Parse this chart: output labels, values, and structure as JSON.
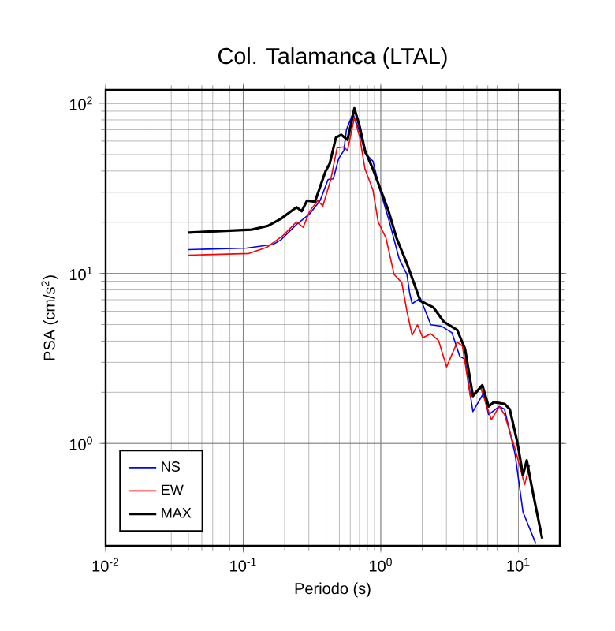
{
  "chart_data": {
    "type": "line",
    "title": "Col. Talamanca (LTAL)",
    "xlabel": "Periodo (s)",
    "ylabel": "PSA (cm/s$^{2}$)",
    "log": "xy",
    "grid": true,
    "legend": "bottom left",
    "marker": "none",
    "line_style": "solid",
    "xlim": [
      0.01,
      20
    ],
    "ylim": [
      0.25,
      120
    ],
    "xticks": [
      {
        "value": 0.01,
        "label": "10$^{-2}$"
      },
      {
        "value": 0.1,
        "label": "10$^{-1}$"
      },
      {
        "value": 1,
        "label": "10$^{0}$"
      },
      {
        "value": 10,
        "label": "10$^{1}$"
      }
    ],
    "yticks": [
      {
        "value": 1,
        "label": "10$^{0}$"
      },
      {
        "value": 10,
        "label": "10$^{1}$"
      },
      {
        "value": 100,
        "label": "10$^{2}$"
      }
    ],
    "series": [
      {
        "name": "NS",
        "color": "#0000ff",
        "x": [
          0.04,
          0.106,
          0.164,
          0.187,
          0.244,
          0.304,
          0.362,
          0.414,
          0.452,
          0.494,
          0.539,
          0.563,
          0.627,
          0.703,
          0.768,
          0.877,
          1.0,
          1.14,
          1.36,
          1.55,
          1.62,
          1.69,
          1.94,
          2.31,
          2.75,
          3.29,
          3.75,
          4.09,
          4.67,
          5.57,
          6.08,
          7.26,
          7.93,
          9.46,
          10.8,
          13.4
        ],
        "values": [
          13.8,
          14.1,
          14.8,
          15.7,
          19.4,
          22.4,
          26.8,
          35.7,
          36,
          47.4,
          52.8,
          70.2,
          87,
          67.8,
          50.9,
          45.7,
          29.8,
          20.9,
          12.2,
          9.85,
          7.67,
          6.64,
          7.14,
          4.99,
          4.9,
          4.48,
          3.25,
          3.13,
          1.54,
          1.97,
          1.48,
          1.65,
          1.59,
          0.867,
          0.395,
          0.257
        ]
      },
      {
        "name": "EW",
        "color": "#ff0000",
        "x": [
          0.04,
          0.11,
          0.15,
          0.196,
          0.244,
          0.273,
          0.304,
          0.348,
          0.379,
          0.433,
          0.481,
          0.539,
          0.573,
          0.643,
          0.703,
          0.768,
          0.877,
          0.957,
          1.09,
          1.25,
          1.42,
          1.55,
          1.69,
          1.85,
          2.02,
          2.31,
          2.63,
          3.01,
          3.59,
          3.92,
          4.47,
          5.33,
          6.36,
          7.26,
          7.93,
          9.46,
          11.1,
          12.1
        ],
        "values": [
          12.8,
          13.1,
          14.3,
          16.8,
          20.1,
          18.7,
          23.2,
          26.8,
          24.9,
          35.7,
          54.7,
          55.5,
          52.8,
          82.8,
          63,
          41.1,
          30.9,
          20.1,
          16.2,
          9.85,
          8.85,
          5.97,
          4.33,
          4.99,
          4.18,
          4.42,
          4.03,
          2.82,
          3.94,
          3.75,
          1.9,
          2.12,
          1.38,
          1.65,
          1.48,
          0.93,
          0.573,
          0.752
        ]
      },
      {
        "name": "MAX",
        "color": "#000000",
        "x": [
          0.04,
          0.115,
          0.15,
          0.187,
          0.244,
          0.266,
          0.291,
          0.332,
          0.396,
          0.425,
          0.472,
          0.515,
          0.573,
          0.643,
          0.703,
          0.768,
          0.877,
          1.0,
          1.14,
          1.3,
          1.55,
          1.94,
          2.41,
          2.88,
          3.59,
          4.09,
          4.67,
          5.47,
          6.08,
          6.64,
          7.93,
          8.66,
          9.87,
          10.8,
          11.5,
          12.9,
          14.9
        ],
        "values": [
          17.4,
          18.1,
          19,
          20.9,
          24.5,
          23.2,
          26.8,
          26.4,
          39.7,
          44.2,
          63,
          65.4,
          61,
          93.5,
          72.8,
          52.8,
          41.1,
          30.9,
          23.2,
          16.2,
          11.4,
          6.89,
          6.32,
          5.18,
          4.65,
          3.62,
          1.9,
          2.2,
          1.65,
          1.75,
          1.71,
          1.59,
          1,
          0.651,
          0.796,
          0.49,
          0.276
        ]
      }
    ]
  }
}
